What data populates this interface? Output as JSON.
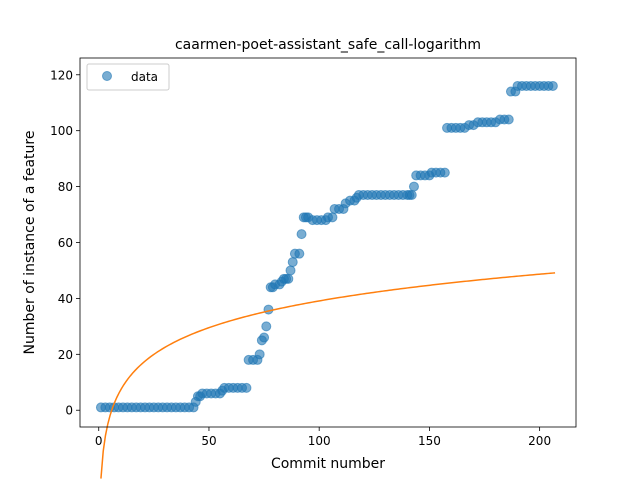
{
  "chart_data": {
    "type": "scatter",
    "title": "caarmen-poet-assistant_safe_call-logarithm",
    "xlabel": "Commit number",
    "ylabel": "Number of instance of a feature",
    "xlim": [
      -8.5,
      216.5
    ],
    "ylim": [
      -6,
      126
    ],
    "xticks": [
      0,
      50,
      100,
      150,
      200
    ],
    "yticks": [
      0,
      20,
      40,
      60,
      80,
      100,
      120
    ],
    "grid": false,
    "legend": {
      "placement": "top-left",
      "entries": [
        "data"
      ]
    },
    "colors": {
      "data": "#1f77b4",
      "fit": "#ff7f0e"
    },
    "series": [
      {
        "name": "data",
        "kind": "scatter",
        "points": [
          [
            1,
            1
          ],
          [
            3,
            1
          ],
          [
            5,
            1
          ],
          [
            7,
            1
          ],
          [
            9,
            1
          ],
          [
            11,
            1
          ],
          [
            13,
            1
          ],
          [
            15,
            1
          ],
          [
            17,
            1
          ],
          [
            19,
            1
          ],
          [
            21,
            1
          ],
          [
            23,
            1
          ],
          [
            25,
            1
          ],
          [
            27,
            1
          ],
          [
            29,
            1
          ],
          [
            31,
            1
          ],
          [
            33,
            1
          ],
          [
            35,
            1
          ],
          [
            37,
            1
          ],
          [
            39,
            1
          ],
          [
            41,
            1
          ],
          [
            43,
            1
          ],
          [
            44,
            3
          ],
          [
            45,
            5
          ],
          [
            46,
            5
          ],
          [
            47,
            6
          ],
          [
            49,
            6
          ],
          [
            51,
            6
          ],
          [
            53,
            6
          ],
          [
            55,
            6
          ],
          [
            56,
            7
          ],
          [
            57,
            8
          ],
          [
            59,
            8
          ],
          [
            61,
            8
          ],
          [
            63,
            8
          ],
          [
            65,
            8
          ],
          [
            67,
            8
          ],
          [
            68,
            18
          ],
          [
            70,
            18
          ],
          [
            72,
            18
          ],
          [
            73,
            20
          ],
          [
            74,
            25
          ],
          [
            75,
            26
          ],
          [
            76,
            30
          ],
          [
            77,
            36
          ],
          [
            78,
            44
          ],
          [
            79,
            44
          ],
          [
            80,
            45
          ],
          [
            82,
            45
          ],
          [
            83,
            46
          ],
          [
            84,
            47
          ],
          [
            85,
            47
          ],
          [
            86,
            47
          ],
          [
            87,
            50
          ],
          [
            88,
            53
          ],
          [
            89,
            56
          ],
          [
            91,
            56
          ],
          [
            92,
            63
          ],
          [
            93,
            69
          ],
          [
            94,
            69
          ],
          [
            95,
            69
          ],
          [
            97,
            68
          ],
          [
            99,
            68
          ],
          [
            101,
            68
          ],
          [
            103,
            68
          ],
          [
            104,
            69
          ],
          [
            106,
            69
          ],
          [
            107,
            72
          ],
          [
            109,
            72
          ],
          [
            111,
            72
          ],
          [
            112,
            74
          ],
          [
            114,
            75
          ],
          [
            116,
            75
          ],
          [
            117,
            76
          ],
          [
            118,
            77
          ],
          [
            120,
            77
          ],
          [
            122,
            77
          ],
          [
            124,
            77
          ],
          [
            126,
            77
          ],
          [
            128,
            77
          ],
          [
            130,
            77
          ],
          [
            132,
            77
          ],
          [
            134,
            77
          ],
          [
            136,
            77
          ],
          [
            138,
            77
          ],
          [
            140,
            77
          ],
          [
            141,
            77
          ],
          [
            142,
            77
          ],
          [
            143,
            80
          ],
          [
            144,
            84
          ],
          [
            146,
            84
          ],
          [
            148,
            84
          ],
          [
            150,
            84
          ],
          [
            151,
            85
          ],
          [
            153,
            85
          ],
          [
            155,
            85
          ],
          [
            157,
            85
          ],
          [
            158,
            101
          ],
          [
            160,
            101
          ],
          [
            162,
            101
          ],
          [
            164,
            101
          ],
          [
            166,
            101
          ],
          [
            168,
            102
          ],
          [
            170,
            102
          ],
          [
            172,
            103
          ],
          [
            174,
            103
          ],
          [
            176,
            103
          ],
          [
            178,
            103
          ],
          [
            180,
            103
          ],
          [
            182,
            104
          ],
          [
            184,
            104
          ],
          [
            186,
            104
          ],
          [
            187,
            114
          ],
          [
            189,
            114
          ],
          [
            190,
            116
          ],
          [
            192,
            116
          ],
          [
            194,
            116
          ],
          [
            196,
            116
          ],
          [
            198,
            116
          ],
          [
            200,
            116
          ],
          [
            202,
            116
          ],
          [
            204,
            116
          ],
          [
            206,
            116
          ]
        ]
      },
      {
        "name": "",
        "kind": "line",
        "model": "logarithmic",
        "coefficients": {
          "a": 13.8,
          "b": 0.17
        },
        "x_range": [
          1,
          207
        ]
      }
    ]
  }
}
